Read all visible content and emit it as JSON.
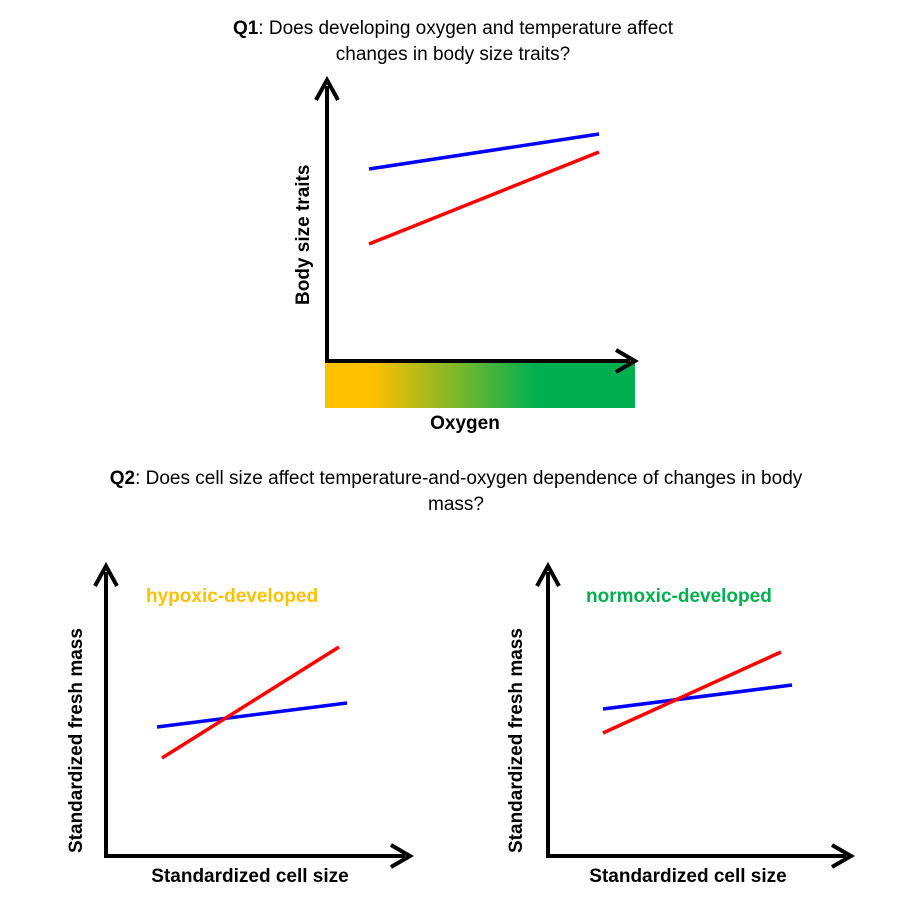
{
  "q1": {
    "number": "Q1",
    "question": ": Does developing  oxygen and temperature  affect changes  in body size traits?"
  },
  "q2": {
    "number": "Q2",
    "question": ": Does cell size affect temperature-and-oxygen  dependence  of changes  in body mass?"
  },
  "panel_top": {
    "ylabel": "Body size traits",
    "xlabel": "Oxygen",
    "gradient_colors": [
      "#FFC000",
      "#00B050"
    ]
  },
  "panel_left": {
    "title": "hypoxic-developed",
    "title_color": "#FFC000",
    "ylabel": "Standardized fresh mass",
    "xlabel": "Standardized cell size"
  },
  "panel_right": {
    "title": "normoxic-developed",
    "title_color": "#00B050",
    "ylabel": "Standardized fresh mass",
    "xlabel": "Standardized cell size"
  },
  "line_colors": {
    "blue": "#0000FF",
    "red": "#FF0000"
  }
}
